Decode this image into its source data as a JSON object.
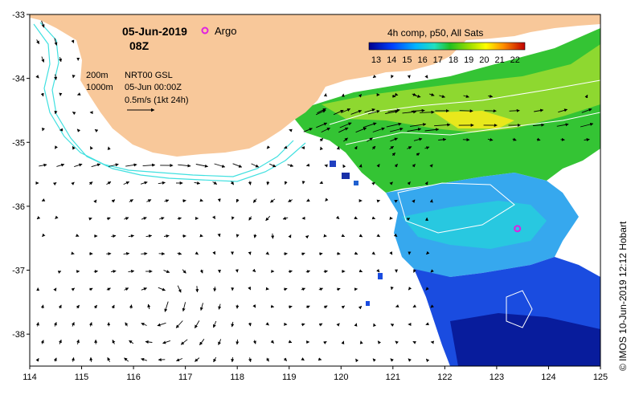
{
  "map": {
    "date": "05-Jun-2019",
    "time": "08Z",
    "argo_label": "Argo",
    "argo_color": "#e020e0",
    "product_title": "4h comp, p50, All Sats",
    "colorbar_ticks": [
      "13",
      "14",
      "15",
      "16",
      "17",
      "18",
      "19",
      "20",
      "21",
      "22"
    ],
    "depth_200": "200m",
    "depth_1000": "1000m",
    "model_name": "NRT00 GSL",
    "model_time": "05-Jun 00:00Z",
    "arrow_scale": "0.5m/s (1kt 24h)",
    "credit": "© IMOS 10-Jun-2019 12:12 Hobart",
    "x_axis": {
      "ticks": [
        "114",
        "115",
        "116",
        "117",
        "118",
        "119",
        "120",
        "121",
        "122",
        "123",
        "124",
        "125"
      ]
    },
    "y_axis": {
      "ticks": [
        "-33",
        "-34",
        "-35",
        "-36",
        "-37",
        "-38"
      ]
    },
    "land_color": "#f8c89a",
    "isobath_color": "#40e0e0",
    "argo_float": {
      "lon": 123.4,
      "lat": -36.35
    },
    "extent": {
      "lon": [
        114,
        125
      ],
      "lat": [
        -38.5,
        -33
      ]
    }
  }
}
